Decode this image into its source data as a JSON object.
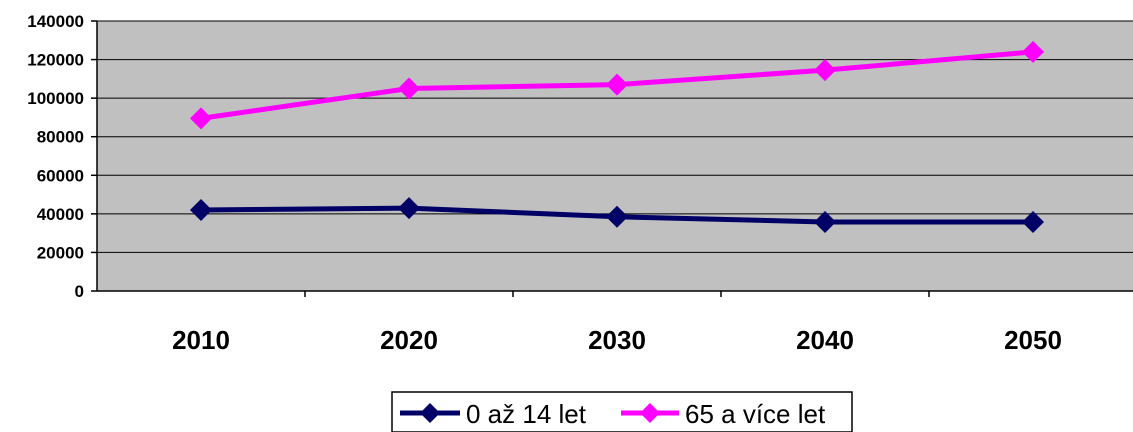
{
  "chart_data": {
    "type": "line",
    "categories": [
      "2010",
      "2020",
      "2030",
      "2040",
      "2050"
    ],
    "series": [
      {
        "name": "0 až 14 let",
        "values": [
          42000,
          43000,
          38500,
          35800,
          35800
        ],
        "color": "#000066"
      },
      {
        "name": "65 a více let",
        "values": [
          89500,
          105000,
          107000,
          114500,
          124000
        ],
        "color": "#ff00ff"
      }
    ],
    "yticks": [
      "0",
      "20000",
      "40000",
      "60000",
      "80000",
      "100000",
      "120000",
      "140000"
    ],
    "ylim": [
      0,
      140000
    ],
    "grid": true,
    "plot_background": "#c0c0c0",
    "legend_position": "bottom",
    "marker": "diamond"
  }
}
